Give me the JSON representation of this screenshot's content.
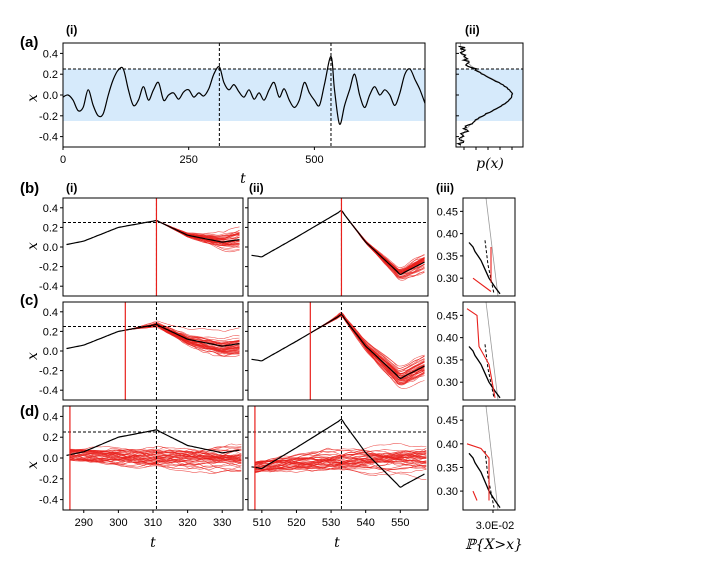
{
  "chart_data": {
    "type": "line",
    "threshold": 0.25,
    "band": [
      -0.25,
      0.25
    ],
    "colors": {
      "band": "#d6eafb",
      "trace": "#000000",
      "ensemble": "#e8201c",
      "threshold": "#000000",
      "guide": "#9a9a9a"
    },
    "labels": {
      "a": "(a)",
      "b": "(b)",
      "c": "(c)",
      "d": "(d)",
      "i": "(i)",
      "ii": "(ii)",
      "iii": "(iii)",
      "x": "x",
      "t": "t",
      "px": "p(x)",
      "prob": "ℙ{X>x}",
      "prob_tick": "3.0E-02"
    },
    "top": {
      "xlim": [
        0,
        720
      ],
      "ylim": [
        -0.5,
        0.5
      ],
      "xticks": [
        0,
        250,
        500
      ],
      "yticks": [
        -0.4,
        -0.2,
        0.0,
        0.2,
        0.4
      ],
      "events": [
        311,
        533
      ],
      "series_t": [
        0,
        10,
        20,
        30,
        40,
        50,
        60,
        70,
        80,
        90,
        100,
        110,
        120,
        130,
        140,
        150,
        160,
        170,
        180,
        190,
        200,
        210,
        220,
        230,
        240,
        250,
        260,
        270,
        280,
        290,
        300,
        311,
        320,
        330,
        340,
        350,
        360,
        370,
        380,
        390,
        400,
        410,
        420,
        430,
        440,
        450,
        460,
        470,
        480,
        490,
        500,
        510,
        520,
        533,
        540,
        550,
        560,
        570,
        580,
        590,
        600,
        610,
        620,
        630,
        640,
        650,
        660,
        670,
        680,
        690,
        700,
        710,
        720
      ],
      "series_x": [
        -0.02,
        0.0,
        -0.05,
        -0.15,
        -0.12,
        0.05,
        -0.1,
        -0.2,
        -0.18,
        0.0,
        0.15,
        0.24,
        0.25,
        0.05,
        -0.1,
        -0.05,
        0.08,
        -0.05,
        0.05,
        0.12,
        -0.05,
        0.0,
        0.02,
        -0.04,
        0.03,
        0.05,
        -0.02,
        0.02,
        -0.01,
        0.06,
        0.2,
        0.27,
        0.12,
        0.05,
        0.1,
        0.03,
        -0.02,
        0.05,
        -0.04,
        0.02,
        -0.05,
        0.05,
        0.12,
        -0.02,
        0.06,
        -0.05,
        -0.12,
        -0.05,
        0.12,
        0.02,
        -0.05,
        -0.1,
        0.1,
        0.37,
        0.05,
        -0.28,
        -0.1,
        0.05,
        0.2,
        0.0,
        -0.12,
        0.0,
        0.08,
        0.0,
        0.05,
        0.0,
        -0.1,
        0.02,
        0.2,
        0.25,
        0.15,
        0.05,
        -0.08
      ]
    },
    "rows": [
      {
        "id": "b",
        "kind": "from_peak",
        "i": {
          "xlim": [
            284,
            336
          ],
          "t0": 311,
          "event": 311,
          "ylim": [
            -0.5,
            0.5
          ],
          "yticks": [
            -0.4,
            -0.2,
            0.0,
            0.2,
            0.4
          ]
        },
        "ii": {
          "xlim": [
            506,
            558
          ],
          "t0": 533,
          "event": 533
        }
      },
      {
        "id": "c",
        "kind": "mid",
        "i": {
          "xlim": [
            284,
            336
          ],
          "t0": 302,
          "event": 311,
          "ylim": [
            -0.5,
            0.5
          ],
          "yticks": [
            -0.4,
            -0.2,
            0.0,
            0.2,
            0.4
          ]
        },
        "ii": {
          "xlim": [
            506,
            558
          ],
          "t0": 524,
          "event": 533
        }
      },
      {
        "id": "d",
        "kind": "early",
        "i": {
          "xlim": [
            284,
            336
          ],
          "t0": 286,
          "event": 311,
          "ylim": [
            -0.5,
            0.5
          ],
          "yticks": [
            -0.4,
            -0.2,
            0.0,
            0.2,
            0.4
          ],
          "xticks": [
            290,
            300,
            310,
            320,
            330
          ]
        },
        "ii": {
          "xlim": [
            506,
            558
          ],
          "t0": 508,
          "event": 533,
          "xticks": [
            510,
            520,
            530,
            540,
            550
          ]
        }
      }
    ],
    "tail": {
      "ylim": [
        0.26,
        0.48
      ],
      "yticks": [
        0.3,
        0.35,
        0.4,
        0.45
      ]
    }
  }
}
